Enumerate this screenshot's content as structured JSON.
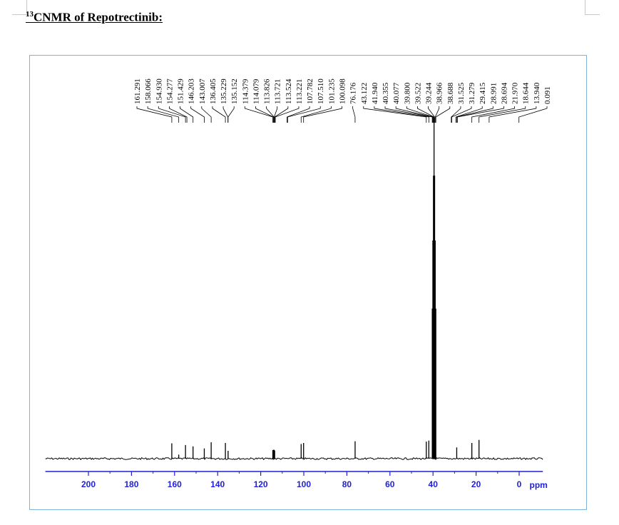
{
  "heading": {
    "superscript": "13",
    "text": "CNMR of Repotrectinib:"
  },
  "chart_data": {
    "type": "line",
    "title": "",
    "xlabel": "ppm",
    "ylabel": "",
    "xlim": [
      220,
      -10
    ],
    "x_ticks": [
      200,
      180,
      160,
      140,
      120,
      100,
      80,
      60,
      40,
      20,
      0
    ],
    "x_axis_color": "#1f1fd6",
    "line_color": "#000000",
    "peak_labels": [
      "161.291",
      "158.066",
      "154.930",
      "154.277",
      "151.429",
      "146.203",
      "143.007",
      "136.405",
      "135.229",
      "135.152",
      "114.379",
      "114.079",
      "113.826",
      "113.721",
      "113.524",
      "113.221",
      "107.782",
      "107.510",
      "101.235",
      "100.098",
      "76.176",
      "43.122",
      "41.940",
      "40.355",
      "40.077",
      "39.800",
      "39.522",
      "39.244",
      "38.966",
      "38.688",
      "31.525",
      "31.279",
      "29.415",
      "28.991",
      "28.694",
      "21.970",
      "18.644",
      "13.940",
      "0.091"
    ],
    "peaks": [
      {
        "ppm": 161.291,
        "height": 0.045
      },
      {
        "ppm": 158.066,
        "height": 0.012
      },
      {
        "ppm": 154.93,
        "height": 0.04
      },
      {
        "ppm": 151.429,
        "height": 0.036
      },
      {
        "ppm": 146.203,
        "height": 0.03
      },
      {
        "ppm": 143.007,
        "height": 0.048
      },
      {
        "ppm": 136.405,
        "height": 0.046
      },
      {
        "ppm": 135.152,
        "height": 0.023
      },
      {
        "ppm": 114.379,
        "height": 0.025
      },
      {
        "ppm": 114.079,
        "height": 0.026
      },
      {
        "ppm": 113.826,
        "height": 0.026
      },
      {
        "ppm": 113.524,
        "height": 0.024
      },
      {
        "ppm": 101.235,
        "height": 0.043
      },
      {
        "ppm": 100.098,
        "height": 0.046
      },
      {
        "ppm": 76.176,
        "height": 0.051
      },
      {
        "ppm": 43.122,
        "height": 0.05
      },
      {
        "ppm": 41.94,
        "height": 0.053
      },
      {
        "ppm": 40.355,
        "height": 0.44
      },
      {
        "ppm": 40.077,
        "height": 0.64
      },
      {
        "ppm": 39.8,
        "height": 0.83
      },
      {
        "ppm": 39.522,
        "height": 1.0
      },
      {
        "ppm": 39.244,
        "height": 0.83
      },
      {
        "ppm": 38.966,
        "height": 0.64
      },
      {
        "ppm": 38.688,
        "height": 0.44
      },
      {
        "ppm": 28.991,
        "height": 0.033
      },
      {
        "ppm": 21.97,
        "height": 0.046
      },
      {
        "ppm": 18.644,
        "height": 0.055
      }
    ]
  }
}
